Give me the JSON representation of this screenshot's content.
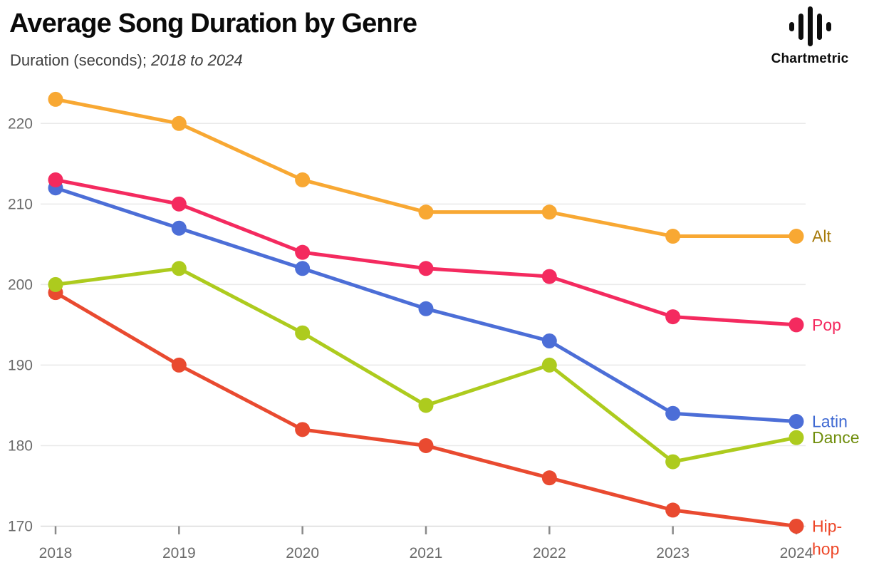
{
  "header": {
    "title": "Average Song Duration by Genre",
    "subtitle_plain": "Duration (seconds); ",
    "subtitle_italic": "2018 to 2024",
    "brand": "Chartmetric"
  },
  "chart_data": {
    "type": "line",
    "title": "Average Song Duration by Genre",
    "ylabel": "Duration (seconds)",
    "x": [
      2018,
      2019,
      2020,
      2021,
      2022,
      2023,
      2024
    ],
    "series": [
      {
        "name": "Alt",
        "color": "#F8A833",
        "label_color": "#A67B0C",
        "label_lines": [
          "Alt"
        ],
        "values": [
          223,
          220,
          213,
          209,
          209,
          206,
          206
        ]
      },
      {
        "name": "Pop",
        "color": "#F42A5F",
        "label_color": "#F42A5F",
        "label_lines": [
          "Pop"
        ],
        "values": [
          213,
          210,
          204,
          202,
          201,
          196,
          195
        ]
      },
      {
        "name": "Latin",
        "color": "#4C6ED7",
        "label_color": "#3E68D2",
        "label_lines": [
          "Latin"
        ],
        "values": [
          212,
          207,
          202,
          197,
          193,
          184,
          183
        ]
      },
      {
        "name": "Dance",
        "color": "#ADCB1E",
        "label_color": "#6F8D0B",
        "label_lines": [
          "Dance"
        ],
        "values": [
          200,
          202,
          194,
          185,
          190,
          178,
          181
        ]
      },
      {
        "name": "Hip-hop",
        "color": "#E94A30",
        "label_color": "#ED4627",
        "label_lines": [
          "Hip-",
          "hop"
        ],
        "values": [
          199,
          190,
          182,
          180,
          176,
          172,
          170
        ]
      }
    ],
    "yticks": [
      170,
      180,
      190,
      200,
      210,
      220
    ],
    "ylim": [
      170,
      225
    ],
    "grid": true,
    "legend_position": "right-edge-labels",
    "colors": {
      "gridline": "#e9e9e9",
      "baseline": "#d9d9d9",
      "tick": "#8a8a8a",
      "axis_text": "#6b6b6b"
    }
  }
}
